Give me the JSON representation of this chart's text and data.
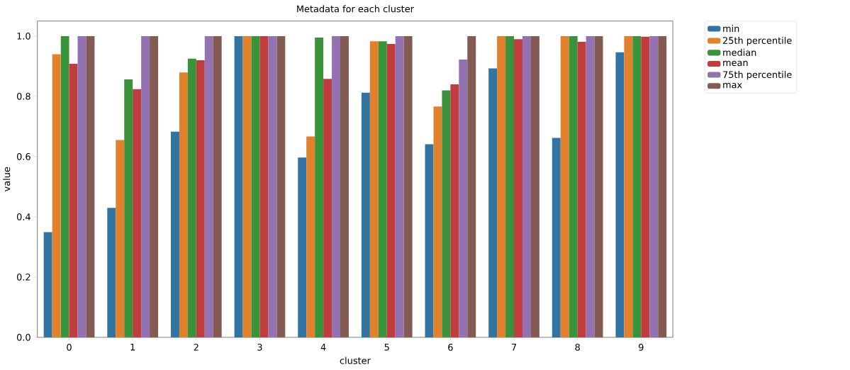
{
  "chart_data": {
    "type": "bar",
    "title": "Metadata for each cluster",
    "xlabel": "cluster",
    "ylabel": "value",
    "categories": [
      "0",
      "1",
      "2",
      "3",
      "4",
      "5",
      "6",
      "7",
      "8",
      "9"
    ],
    "series": [
      {
        "name": "min",
        "color": "#3274a1",
        "values": [
          0.349,
          0.43,
          0.683,
          1.0,
          0.597,
          0.812,
          0.641,
          0.893,
          0.662,
          0.946
        ]
      },
      {
        "name": "25th percentile",
        "color": "#e1812c",
        "values": [
          0.94,
          0.655,
          0.879,
          1.0,
          0.667,
          0.983,
          0.766,
          1.0,
          1.0,
          1.0
        ]
      },
      {
        "name": "median",
        "color": "#3a923a",
        "values": [
          1.0,
          0.856,
          0.925,
          1.0,
          0.995,
          0.983,
          0.82,
          1.0,
          1.0,
          1.0
        ]
      },
      {
        "name": "mean",
        "color": "#c03d3e",
        "values": [
          0.908,
          0.824,
          0.92,
          1.0,
          0.858,
          0.974,
          0.84,
          0.99,
          0.981,
          0.998
        ]
      },
      {
        "name": "75th percentile",
        "color": "#9372b2",
        "values": [
          1.0,
          1.0,
          1.0,
          1.0,
          1.0,
          1.0,
          0.922,
          1.0,
          1.0,
          1.0
        ]
      },
      {
        "name": "max",
        "color": "#845b53",
        "values": [
          1.0,
          1.0,
          1.0,
          1.0,
          1.0,
          1.0,
          1.0,
          1.0,
          1.0,
          1.0
        ]
      }
    ],
    "ylim": [
      0,
      1.05
    ],
    "yticks": [
      {
        "value": 0,
        "label": "0.0"
      },
      0.2,
      0.4,
      0.6,
      0.8,
      {
        "value": 1,
        "label": "1.0"
      }
    ],
    "grid": false,
    "legend": "top right"
  }
}
